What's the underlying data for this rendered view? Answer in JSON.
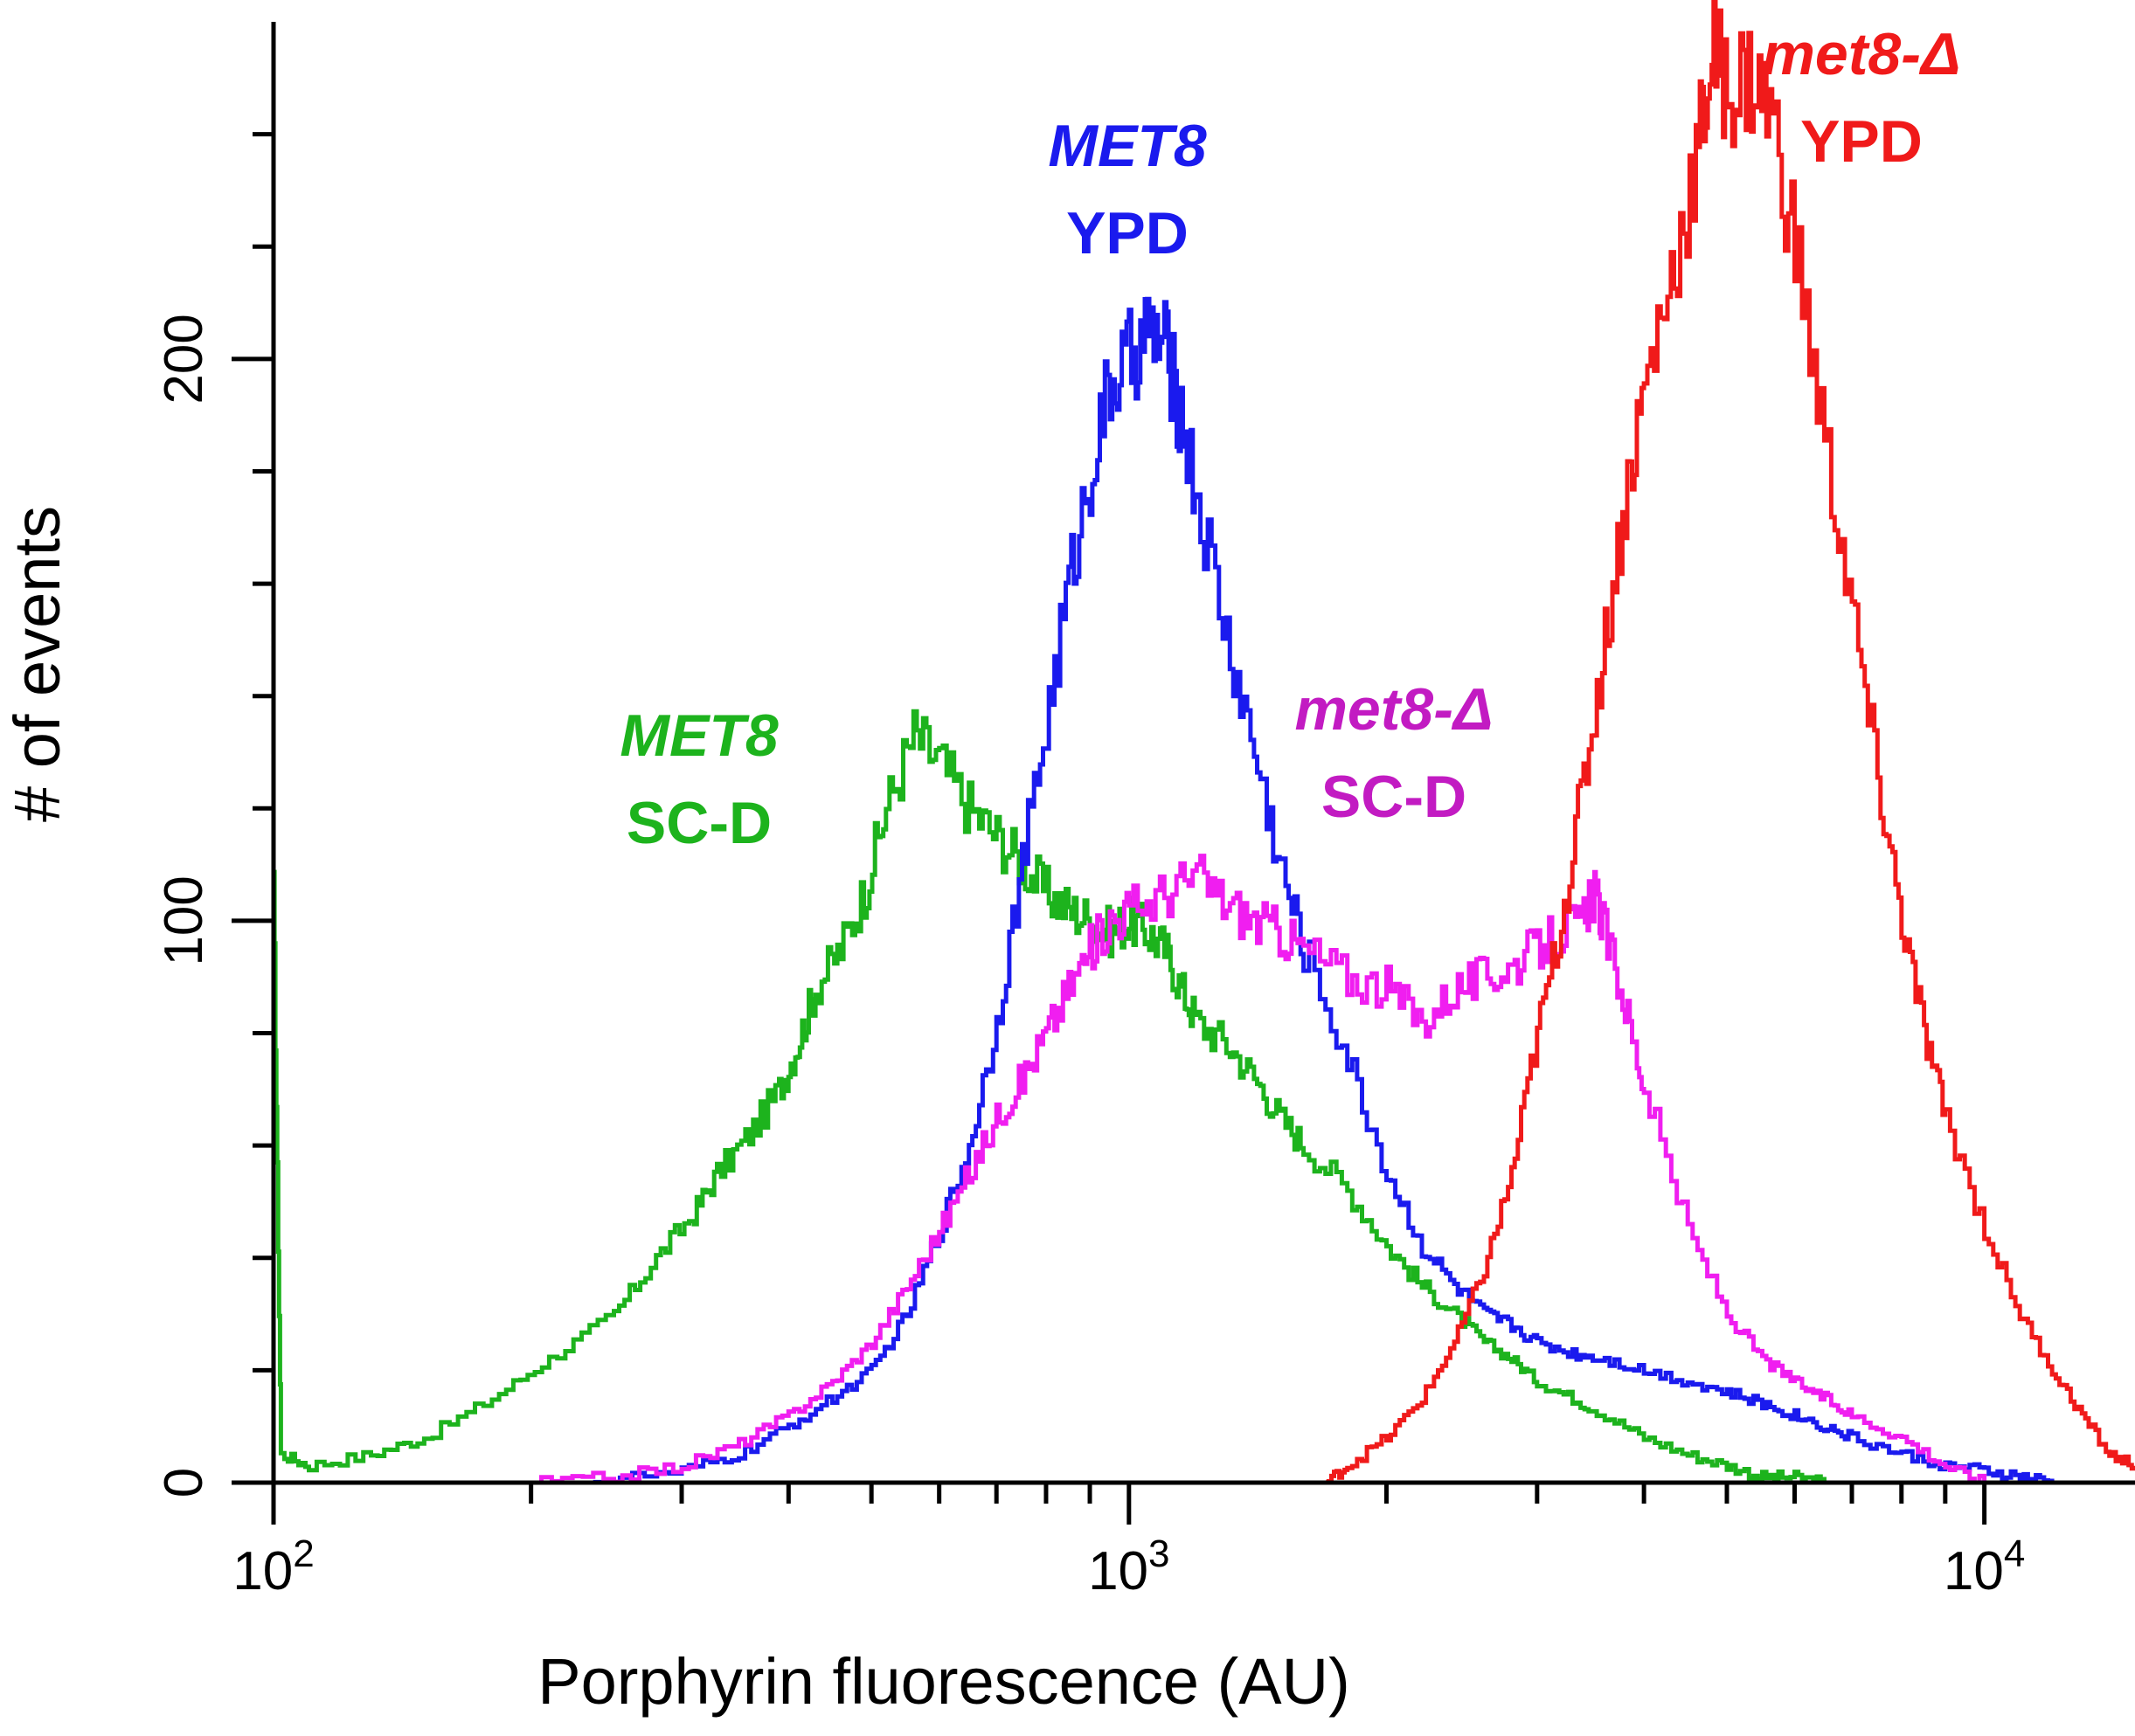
{
  "chart_data": {
    "type": "line",
    "title": "",
    "xlabel": "Porphyrin fluorescence (AU)",
    "ylabel": "# of events",
    "xscale": "log",
    "xlim": [
      100,
      15000
    ],
    "ylim": [
      0,
      260
    ],
    "x_ticks": [
      {
        "value": 100,
        "base": "10",
        "exp": "2"
      },
      {
        "value": 1000,
        "base": "10",
        "exp": "3"
      },
      {
        "value": 10000,
        "base": "10",
        "exp": "4"
      }
    ],
    "y_ticks": [
      {
        "value": 0,
        "label": "0"
      },
      {
        "value": 100,
        "label": "100"
      },
      {
        "value": 200,
        "label": "200"
      }
    ],
    "series": [
      {
        "name": "MET8 SC-D",
        "color": "#1db31d",
        "x": [
          100,
          102,
          110,
          130,
          150,
          180,
          210,
          250,
          280,
          310,
          330,
          360,
          390,
          410,
          430,
          460,
          490,
          520,
          560,
          600,
          650,
          700,
          750,
          800,
          850,
          900,
          950,
          1000,
          1050,
          1100,
          1150,
          1200,
          1300,
          1400,
          1500,
          1600,
          1800,
          2000,
          2200,
          2400,
          2600,
          2800,
          3000,
          3300,
          3600,
          4000,
          4500,
          5000,
          5500,
          6000,
          6500
        ],
        "values": [
          105,
          5,
          3,
          5,
          8,
          15,
          22,
          30,
          40,
          48,
          55,
          62,
          70,
          78,
          88,
          95,
          105,
          120,
          133,
          128,
          120,
          115,
          110,
          105,
          102,
          100,
          98,
          100,
          98,
          95,
          88,
          82,
          78,
          72,
          65,
          60,
          52,
          42,
          35,
          30,
          25,
          22,
          18,
          15,
          12,
          8,
          5,
          3,
          1,
          1,
          0
        ]
      },
      {
        "name": "MET8 YPD",
        "color": "#1a1aee",
        "x": [
          230,
          300,
          350,
          400,
          450,
          500,
          550,
          600,
          650,
          700,
          750,
          800,
          850,
          900,
          950,
          1000,
          1050,
          1100,
          1150,
          1200,
          1300,
          1400,
          1500,
          1600,
          1800,
          2000,
          2200,
          2400,
          2600,
          2800,
          3000,
          3300,
          3600,
          4000,
          4500,
          5000,
          5500,
          6000,
          6500,
          7000,
          8000,
          9000,
          10000,
          11000,
          12000
        ],
        "values": [
          0,
          2,
          5,
          10,
          15,
          20,
          30,
          45,
          60,
          82,
          110,
          135,
          160,
          180,
          195,
          200,
          205,
          202,
          190,
          175,
          150,
          130,
          110,
          95,
          75,
          55,
          42,
          35,
          30,
          28,
          25,
          23,
          22,
          20,
          18,
          16,
          14,
          12,
          10,
          8,
          5,
          3,
          2,
          1,
          0
        ]
      },
      {
        "name": "met8-Δ SC-D",
        "color": "#f01ef0",
        "x": [
          200,
          250,
          300,
          350,
          400,
          450,
          500,
          550,
          600,
          650,
          700,
          750,
          800,
          850,
          900,
          950,
          1000,
          1100,
          1200,
          1300,
          1400,
          1500,
          1600,
          1800,
          2000,
          2200,
          2400,
          2600,
          2800,
          3000,
          3200,
          3400,
          3500,
          3600,
          3800,
          4000,
          4500,
          5000,
          5500,
          6000,
          6500,
          7000,
          8000,
          9000,
          10000
        ],
        "values": [
          0,
          1,
          3,
          7,
          12,
          18,
          25,
          35,
          45,
          55,
          65,
          72,
          80,
          88,
          95,
          100,
          102,
          105,
          108,
          103,
          100,
          98,
          95,
          90,
          88,
          82,
          88,
          90,
          92,
          95,
          98,
          100,
          105,
          98,
          85,
          70,
          45,
          30,
          22,
          18,
          15,
          12,
          8,
          3,
          0
        ]
      },
      {
        "name": "met8-Δ YPD",
        "color": "#f01a1a",
        "x": [
          1700,
          1800,
          2000,
          2200,
          2400,
          2600,
          2800,
          3000,
          3200,
          3400,
          3600,
          3800,
          4000,
          4300,
          4600,
          4800,
          5000,
          5300,
          5600,
          6000,
          6500,
          7000,
          7500,
          8000,
          8500,
          9000,
          10000,
          11000,
          12000,
          13000,
          14000,
          15000
        ],
        "values": [
          0,
          3,
          8,
          15,
          25,
          38,
          55,
          80,
          100,
          125,
          150,
          175,
          195,
          215,
          235,
          255,
          248,
          250,
          245,
          220,
          185,
          155,
          125,
          100,
          80,
          65,
          45,
          30,
          20,
          12,
          5,
          3
        ]
      }
    ],
    "annotations": [
      {
        "line1": "MET8",
        "line2": "SC-D",
        "series": "MET8 SC-D",
        "color": "#1db31d",
        "italic_line1": true
      },
      {
        "line1": "MET8",
        "line2": "YPD",
        "series": "MET8 YPD",
        "color": "#1a1aee",
        "italic_line1": true
      },
      {
        "line1": "met8-Δ",
        "line2": "SC-D",
        "series": "met8-Δ SC-D",
        "color": "#c21bc2",
        "italic_line1": true
      },
      {
        "line1": "met8-Δ",
        "line2": "YPD",
        "series": "met8-Δ YPD",
        "color": "#f01a1a",
        "italic_line1": true
      }
    ]
  }
}
